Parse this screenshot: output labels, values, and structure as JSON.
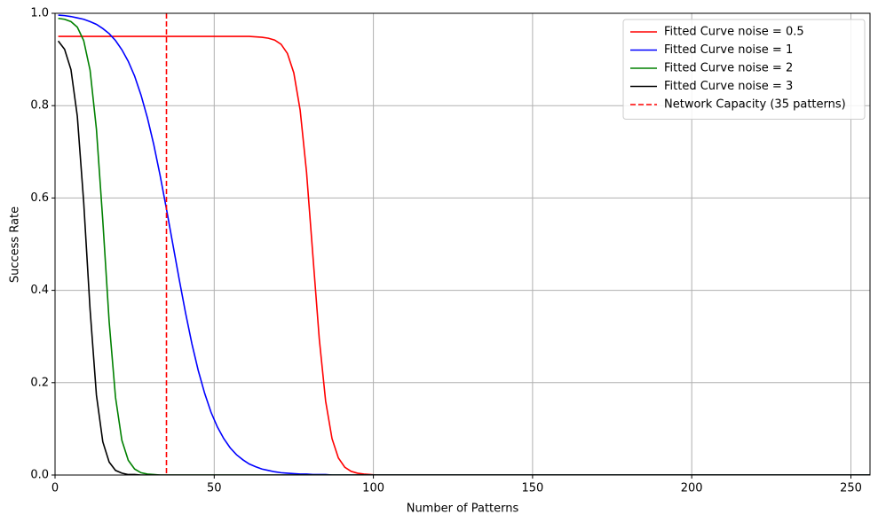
{
  "chart_data": {
    "type": "line",
    "xlabel": "Number of Patterns",
    "ylabel": "Success Rate",
    "x": [
      1,
      3,
      5,
      7,
      9,
      11,
      13,
      15,
      17,
      19,
      21,
      23,
      25,
      27,
      29,
      31,
      33,
      35,
      37,
      39,
      41,
      43,
      45,
      47,
      49,
      51,
      53,
      55,
      57,
      59,
      61,
      63,
      65,
      67,
      69,
      71,
      73,
      75,
      77,
      79,
      81,
      83,
      85,
      87,
      89,
      91,
      93,
      95,
      97,
      99,
      101,
      120,
      140,
      160,
      180,
      200,
      220,
      240,
      256
    ],
    "series": [
      {
        "name": "Fitted Curve noise = 0.5",
        "color": "#ff0000",
        "values": [
          0.95,
          0.95,
          0.95,
          0.95,
          0.95,
          0.95,
          0.95,
          0.95,
          0.95,
          0.95,
          0.95,
          0.95,
          0.95,
          0.95,
          0.95,
          0.95,
          0.95,
          0.95,
          0.95,
          0.95,
          0.95,
          0.95,
          0.95,
          0.95,
          0.95,
          0.95,
          0.95,
          0.95,
          0.95,
          0.95,
          0.95,
          0.949,
          0.948,
          0.946,
          0.942,
          0.933,
          0.913,
          0.871,
          0.79,
          0.656,
          0.475,
          0.295,
          0.16,
          0.079,
          0.037,
          0.017,
          0.008,
          0.004,
          0.002,
          0.001,
          0,
          0,
          0,
          0,
          0,
          0,
          0,
          0,
          0
        ]
      },
      {
        "name": "Fitted Curve noise = 1",
        "color": "#0000ff",
        "values": [
          0.996,
          0.995,
          0.993,
          0.99,
          0.987,
          0.982,
          0.976,
          0.967,
          0.956,
          0.941,
          0.921,
          0.896,
          0.864,
          0.823,
          0.774,
          0.716,
          0.649,
          0.576,
          0.5,
          0.424,
          0.351,
          0.284,
          0.226,
          0.177,
          0.136,
          0.104,
          0.079,
          0.059,
          0.044,
          0.033,
          0.024,
          0.018,
          0.013,
          0.01,
          0.007,
          0.005,
          0.004,
          0.003,
          0.002,
          0.002,
          0.001,
          0.001,
          0.001,
          0,
          0,
          0,
          0,
          0,
          0,
          0,
          0,
          0,
          0,
          0,
          0,
          0,
          0,
          0,
          0
        ]
      },
      {
        "name": "Fitted Curve noise = 2",
        "color": "#008000",
        "values": [
          0.989,
          0.987,
          0.982,
          0.97,
          0.941,
          0.877,
          0.749,
          0.551,
          0.332,
          0.168,
          0.075,
          0.032,
          0.013,
          0.005,
          0.002,
          0.001,
          0,
          0,
          0,
          0,
          0,
          0,
          0,
          0,
          0,
          0,
          0,
          0,
          0,
          0,
          0,
          0,
          0,
          0,
          0,
          0,
          0,
          0,
          0,
          0,
          0,
          0,
          0,
          0,
          0,
          0,
          0,
          0,
          0,
          0,
          0,
          0,
          0,
          0,
          0,
          0,
          0,
          0,
          0
        ]
      },
      {
        "name": "Fitted Curve noise = 3",
        "color": "#000000",
        "values": [
          0.94,
          0.922,
          0.878,
          0.777,
          0.591,
          0.359,
          0.173,
          0.072,
          0.028,
          0.01,
          0.004,
          0.001,
          0.001,
          0,
          0,
          0,
          0,
          0,
          0,
          0,
          0,
          0,
          0,
          0,
          0,
          0,
          0,
          0,
          0,
          0,
          0,
          0,
          0,
          0,
          0,
          0,
          0,
          0,
          0,
          0,
          0,
          0,
          0,
          0,
          0,
          0,
          0,
          0,
          0,
          0,
          0,
          0,
          0,
          0,
          0,
          0,
          0,
          0,
          0
        ]
      }
    ],
    "vline": {
      "x": 35,
      "name": "Network Capacity (35 patterns)",
      "color": "#ff0000"
    },
    "xlim": [
      0,
      256
    ],
    "ylim": [
      0,
      1
    ],
    "xticks": [
      0,
      50,
      100,
      150,
      200,
      250
    ],
    "yticks": [
      {
        "value": 0,
        "label": "0.0"
      },
      0.2,
      0.4,
      0.6,
      0.8,
      {
        "value": 1,
        "label": "1.0"
      }
    ],
    "grid": true,
    "legend": "upper right"
  }
}
